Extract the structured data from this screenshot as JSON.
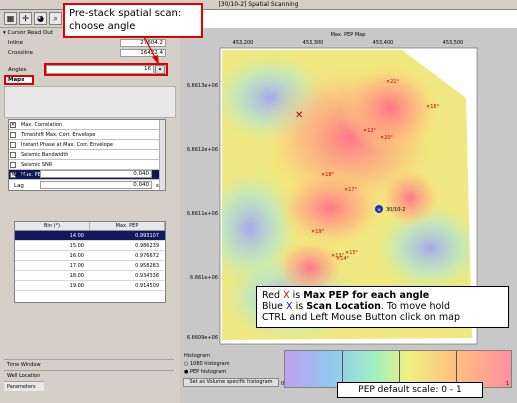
{
  "window": {
    "title": "[30/10-2] Spatial Scanning"
  },
  "toolbar": {
    "icons": [
      "grid-icon",
      "crosshair-icon",
      "palette-icon",
      "magnify-icon"
    ]
  },
  "cursor_readout": {
    "header": "Cursor Read Out",
    "inline_label": "Inline",
    "inline_value": "27604.2",
    "crossline_label": "Crossline",
    "crossline_value": "16422.4"
  },
  "angles": {
    "label": "Angles",
    "value": "16"
  },
  "maps": {
    "tab_label": "Maps",
    "items": [
      {
        "label": "Max. Correlation",
        "checked": true,
        "selected": false
      },
      {
        "label": "Timeshift Max. Corr. Envelope",
        "checked": false,
        "selected": false
      },
      {
        "label": "Instant Phase at Max. Corr. Envelope",
        "checked": false,
        "selected": false
      },
      {
        "label": "Seismic Bandwidth",
        "checked": false,
        "selected": false
      },
      {
        "label": "Seismic SNR",
        "checked": false,
        "selected": false
      },
      {
        "label": "Max. PEP",
        "checked": true,
        "selected": true
      }
    ]
  },
  "lead": {
    "label": "Lead",
    "value": "0.040",
    "unit": "s"
  },
  "lag": {
    "label": "Lag",
    "value": "0.040",
    "unit": "s"
  },
  "bin_table": {
    "headers": [
      "Bin (°)",
      "Max. PEP"
    ],
    "rows": [
      [
        "14.00",
        "0.993107"
      ],
      [
        "15.00",
        "0.986239"
      ],
      [
        "16.00",
        "0.976672"
      ],
      [
        "17.00",
        "0.958283"
      ],
      [
        "18.00",
        "0.934336"
      ],
      [
        "19.00",
        "0.914509"
      ]
    ]
  },
  "bottom_tabs": {
    "time_window": "Time Window",
    "well_location": "Well Location",
    "parameters": "Parameters"
  },
  "map": {
    "title": "Max. PEP Map",
    "x_ticks": [
      "453,200",
      "453,300",
      "453,400",
      "453,500"
    ],
    "y_ticks": [
      "6.6613e+06",
      "6.6612e+06",
      "6.6611e+06",
      "6.661e+06",
      "6.6609e+06"
    ],
    "angle_markers": [
      "21°",
      "16°",
      "12°",
      "20°",
      "18°",
      "17°",
      "13°",
      "19°",
      "15°",
      "14°"
    ],
    "well_label": "30/10-2"
  },
  "histogram": {
    "label": "Histogram",
    "option_1080": "1080 histogram",
    "option_pep": "PEP histogram",
    "button": "Set as Volume specific histogram",
    "min": "0",
    "max": "1"
  },
  "callouts": {
    "top_line1": "Pre-stack spatial scan:",
    "top_line2": "choose angle",
    "info_line1_prefix": "Red ",
    "info_line1_x": "X",
    "info_line1_mid": " is ",
    "info_line1_bold": "Max PEP for each angle",
    "info_line2_prefix": "Blue ",
    "info_line2_x": "X",
    "info_line2_mid": " is ",
    "info_line2_bold": "Scan Location",
    "info_line2_rest": ". To move hold",
    "info_line3": "CTRL and Left Mouse Button click on map",
    "scale": "PEP default scale: 0 - 1"
  },
  "colors": {
    "callout_border": "#e00000",
    "selection": "#101860",
    "well_marker": "#2030c0"
  }
}
